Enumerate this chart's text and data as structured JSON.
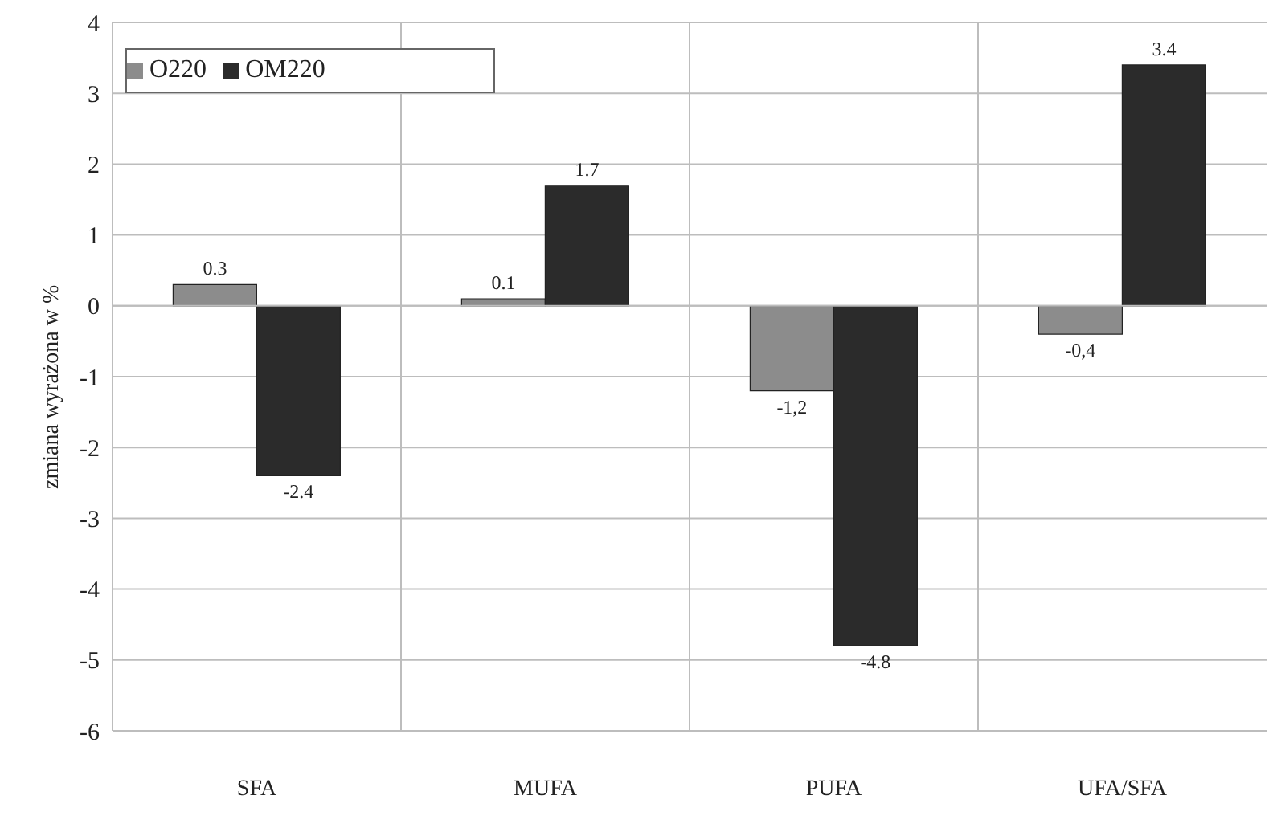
{
  "chart_data": {
    "type": "bar",
    "ylabel": "zmiana wyrażona w %",
    "categories": [
      "SFA",
      "MUFA",
      "PUFA",
      "UFA/SFA"
    ],
    "series": [
      {
        "name": "O220",
        "color": "#8c8c8c",
        "values": [
          0.3,
          0.1,
          -1.2,
          -0.4
        ],
        "value_labels": [
          "0.3",
          "0.1",
          "-1,2",
          "-0,4"
        ]
      },
      {
        "name": "OM220",
        "color": "#2b2b2b",
        "values": [
          -2.4,
          1.7,
          -4.8,
          3.4
        ],
        "value_labels": [
          "-2.4",
          "1.7",
          "-4.8",
          "3.4"
        ]
      }
    ],
    "ylim": [
      -6,
      4
    ],
    "yticks": [
      -6,
      -5,
      -4,
      -3,
      -2,
      -1,
      0,
      1,
      2,
      3,
      4
    ],
    "grid": true,
    "legend": "top left"
  }
}
